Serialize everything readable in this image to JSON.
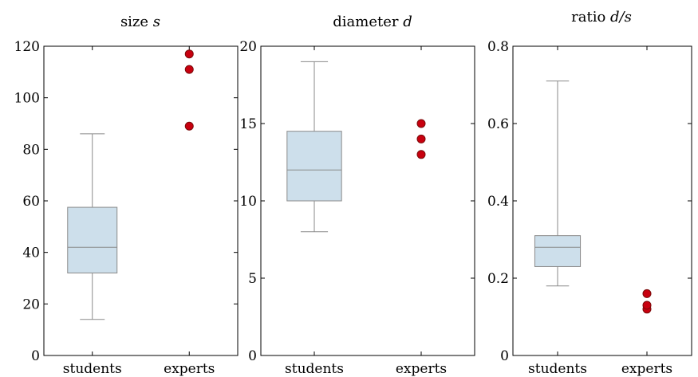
{
  "colors": {
    "box_fill": "#cddfeb",
    "box_stroke": "#8a8a8a",
    "whisker": "#8a8a8a",
    "outlier_fill": "#c8000f",
    "outlier_stroke": "#7a0a0a",
    "axis": "#000000"
  },
  "chart_data": [
    {
      "type": "box",
      "title_main": "size",
      "title_var": "s",
      "categories": [
        "students",
        "experts"
      ],
      "ylim": [
        0,
        120
      ],
      "yticks": [
        "0",
        "20",
        "40",
        "60",
        "80",
        "100",
        "120"
      ],
      "yticks_values": [
        0,
        20,
        40,
        60,
        80,
        100,
        120
      ],
      "boxes": [
        {
          "category": "students",
          "min": 14,
          "q1": 32,
          "median": 42,
          "q3": 57.5,
          "max": 86,
          "points": []
        },
        {
          "category": "experts",
          "points": [
            89,
            111,
            117
          ]
        }
      ],
      "grid": false
    },
    {
      "type": "box",
      "title_main": "diameter",
      "title_var": "d",
      "categories": [
        "students",
        "experts"
      ],
      "ylim": [
        0,
        20
      ],
      "yticks": [
        "0",
        "5",
        "10",
        "15",
        "20"
      ],
      "yticks_values": [
        0,
        5,
        10,
        15,
        20
      ],
      "boxes": [
        {
          "category": "students",
          "min": 8,
          "q1": 10,
          "median": 12,
          "q3": 14.5,
          "max": 19,
          "points": []
        },
        {
          "category": "experts",
          "points": [
            13,
            14,
            15
          ]
        }
      ],
      "grid": false
    },
    {
      "type": "box",
      "title_main": "ratio",
      "title_var": "d/s",
      "categories": [
        "students",
        "experts"
      ],
      "ylim": [
        0,
        0.8
      ],
      "yticks": [
        "0",
        "0.2",
        "0.4",
        "0.6",
        "0.8"
      ],
      "yticks_values": [
        0,
        0.2,
        0.4,
        0.6,
        0.8
      ],
      "boxes": [
        {
          "category": "students",
          "min": 0.18,
          "q1": 0.23,
          "median": 0.28,
          "q3": 0.31,
          "max": 0.71,
          "points": []
        },
        {
          "category": "experts",
          "points": [
            0.12,
            0.13,
            0.16
          ]
        }
      ],
      "grid": false
    }
  ]
}
